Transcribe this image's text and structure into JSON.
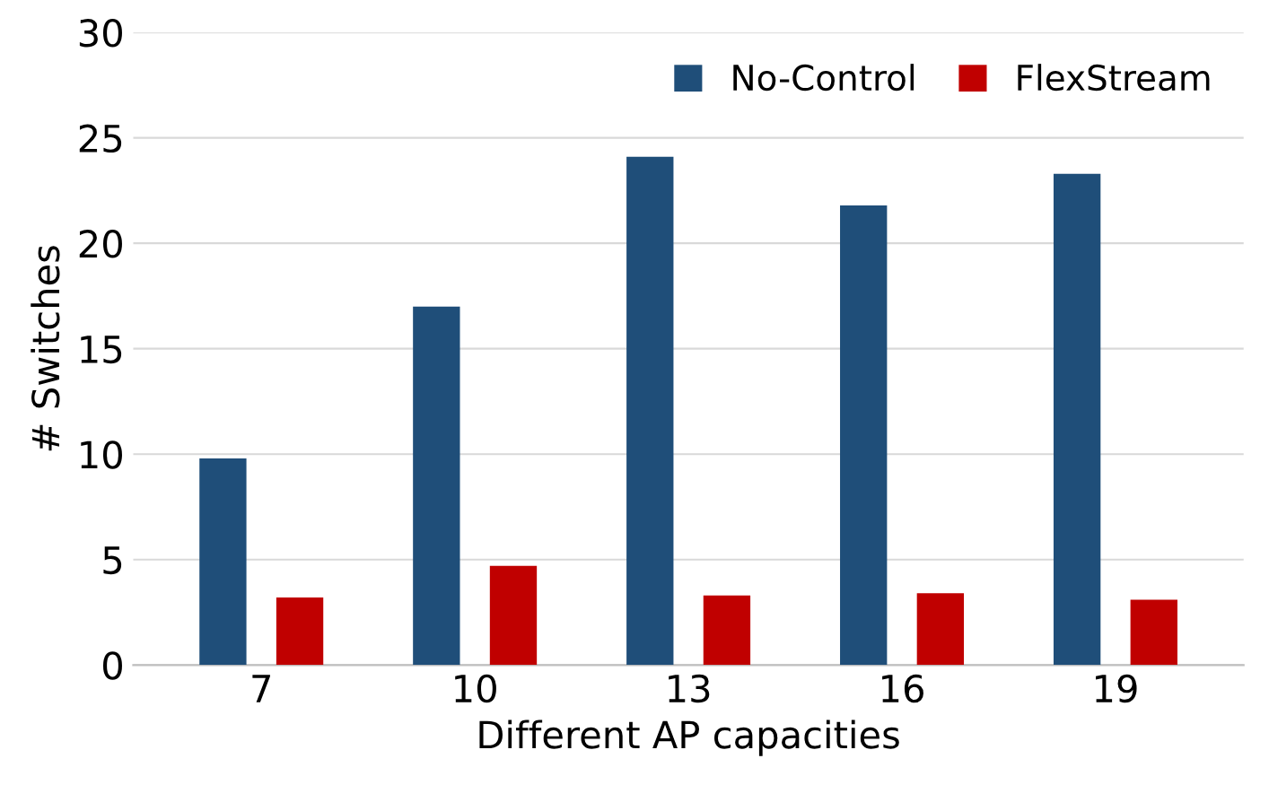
{
  "chart_data": {
    "type": "bar",
    "xlabel": "Different AP capacities",
    "ylabel": "# Switches",
    "categories": [
      "7",
      "10",
      "13",
      "16",
      "19"
    ],
    "series": [
      {
        "name": "No-Control",
        "color": "#1f4e79",
        "values": [
          9.8,
          17.0,
          24.1,
          21.8,
          23.3
        ]
      },
      {
        "name": "FlexStream",
        "color": "#c00000",
        "values": [
          3.2,
          4.7,
          3.3,
          3.4,
          3.1
        ]
      }
    ],
    "ylim": [
      0,
      30
    ],
    "yticks": [
      0,
      5,
      10,
      15,
      20,
      25,
      30
    ],
    "grid": "y",
    "legend": "top right"
  }
}
